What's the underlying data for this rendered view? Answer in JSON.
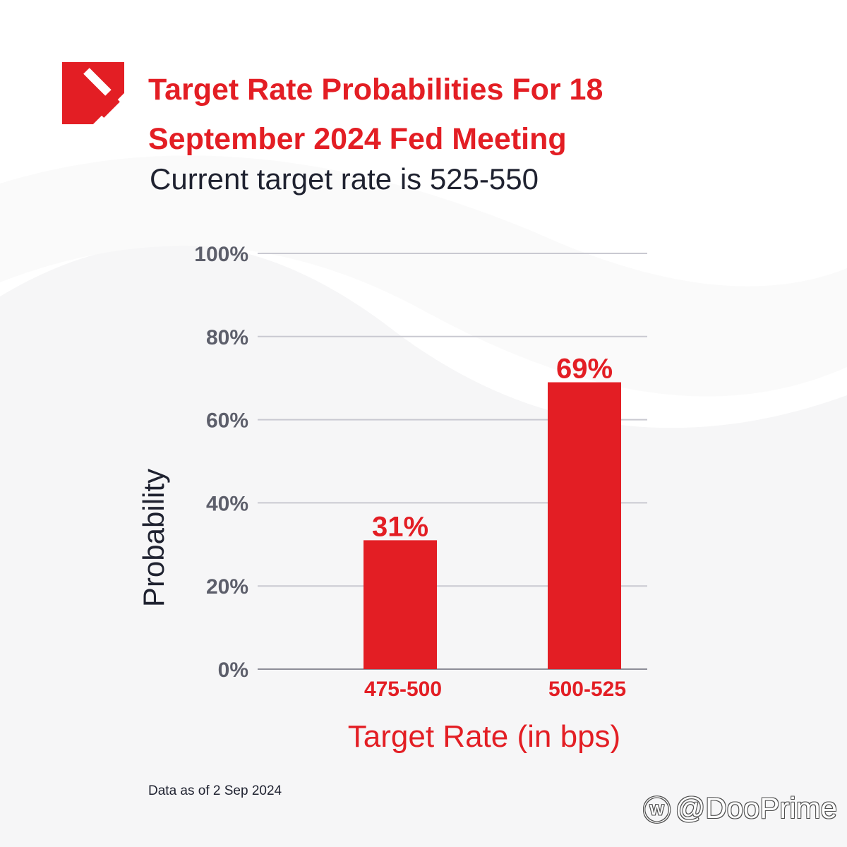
{
  "header": {
    "title": "Target Rate Probabilities For 18 September 2024 Fed Meeting",
    "subtitle": "Current target rate is 525-550"
  },
  "footnote": "Data as of 2 Sep 2024",
  "watermark": {
    "icon": "weibo-icon",
    "text": "@DooPrime"
  },
  "colors": {
    "accent": "#e31e24",
    "text": "#1f2230",
    "grid": "#c9c9d1",
    "tick": "#5d5f6b"
  },
  "chart_data": {
    "type": "bar",
    "categories": [
      "475-500",
      "500-525"
    ],
    "values": [
      31,
      69
    ],
    "value_labels": [
      "31%",
      "69%"
    ],
    "xlabel": "Target Rate (in bps)",
    "ylabel": "Probability",
    "ylim": [
      0,
      100
    ],
    "yticks": [
      0,
      20,
      40,
      60,
      80,
      100
    ],
    "ytick_labels": [
      "0%",
      "20%",
      "40%",
      "60%",
      "80%",
      "100%"
    ],
    "grid": true,
    "legend": "none"
  }
}
